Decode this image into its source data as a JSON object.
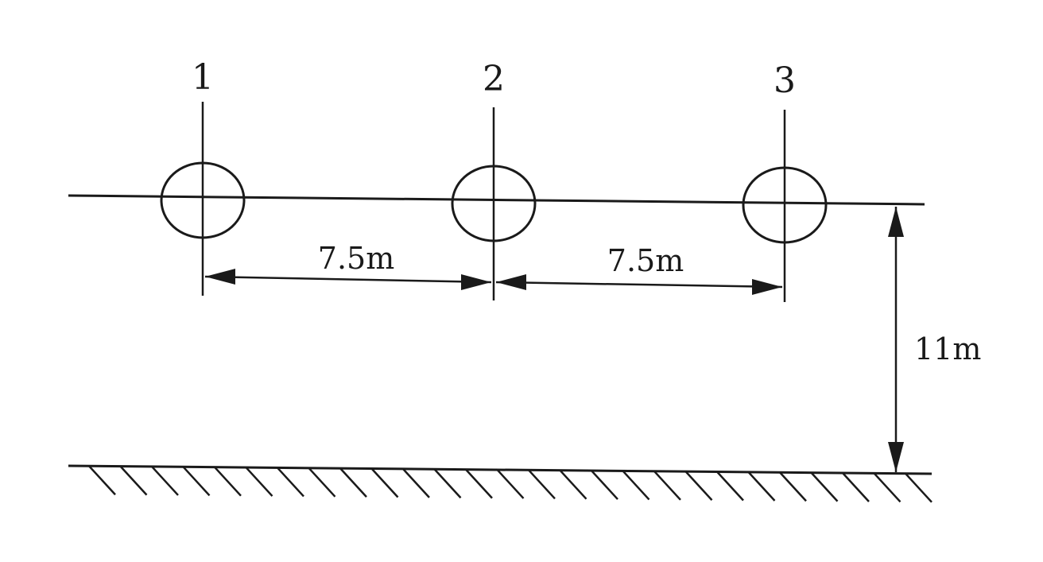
{
  "conductors": [
    {
      "id": "1",
      "label": "1"
    },
    {
      "id": "2",
      "label": "2"
    },
    {
      "id": "3",
      "label": "3"
    }
  ],
  "dimensions": {
    "spacing_1_2": "7.5m",
    "spacing_2_3": "7.5m",
    "height_above_ground": "11m"
  }
}
